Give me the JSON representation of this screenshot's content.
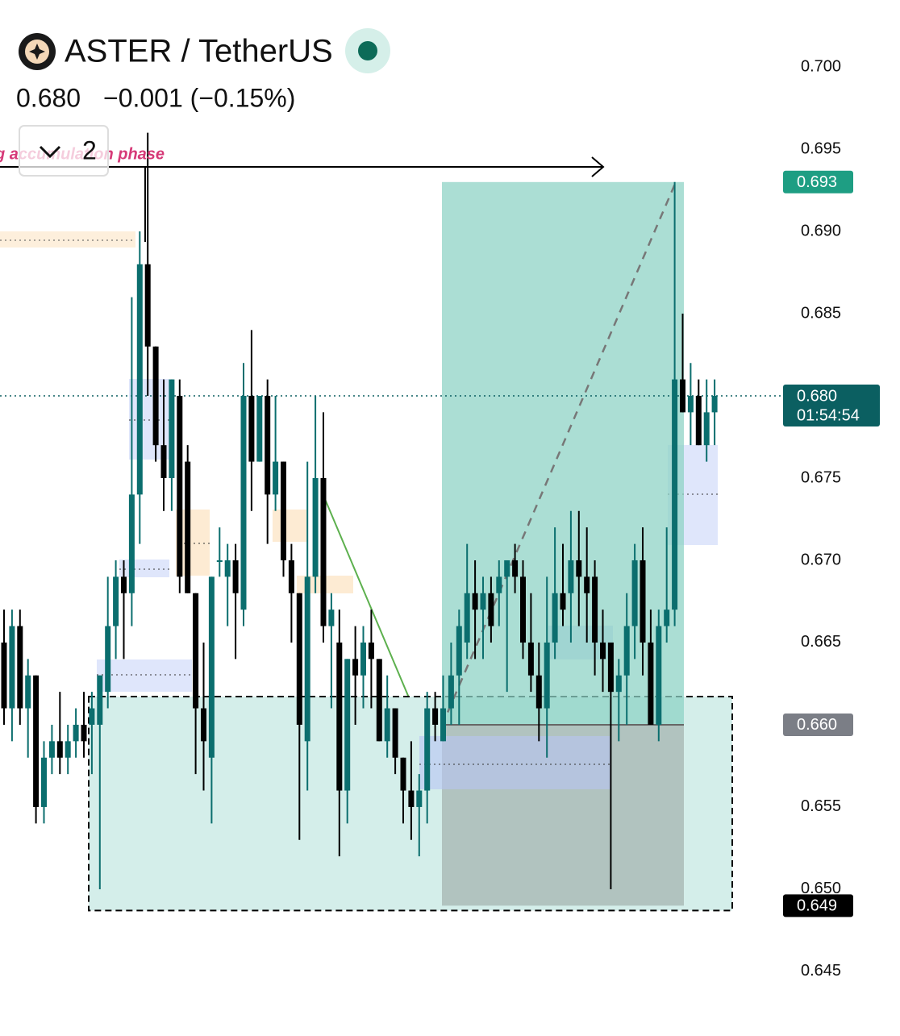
{
  "chart_data": {
    "type": "candlestick",
    "title": "ASTER / TetherUS",
    "price": "0.680",
    "change": "−0.001 (−0.15%)",
    "interval_count": "2",
    "annotation": "g accumulation phase",
    "up_color": "#0b6e6e",
    "down_color": "#000000",
    "ylim": [
      0.64132,
      0.70407
    ],
    "yticks": [
      {
        "value": 0.7,
        "label": "0.700"
      },
      {
        "value": 0.695,
        "label": "0.695"
      },
      {
        "value": 0.69,
        "label": "0.690"
      },
      {
        "value": 0.685,
        "label": "0.685"
      },
      {
        "value": 0.68,
        "label": "0.680"
      },
      {
        "value": 0.675,
        "label": "0.675"
      },
      {
        "value": 0.67,
        "label": "0.670"
      },
      {
        "value": 0.665,
        "label": "0.665"
      },
      {
        "value": 0.66,
        "label": "0.660"
      },
      {
        "value": 0.655,
        "label": "0.655"
      },
      {
        "value": 0.65,
        "label": "0.650"
      },
      {
        "value": 0.645,
        "label": "0.645"
      }
    ],
    "price_labels": [
      {
        "value": 0.693,
        "label": "0.693",
        "color": "#1e9e83"
      },
      {
        "value": 0.68,
        "label": "0.680",
        "sublabel": "01:54:54",
        "color": "#0b5f61"
      },
      {
        "value": 0.66,
        "label": "0.660",
        "color": "#7b7e86"
      },
      {
        "value": 0.649,
        "label": "0.649",
        "color": "#000000"
      }
    ],
    "ohlc": [
      [
        0.665,
        0.667,
        0.66,
        0.661
      ],
      [
        0.661,
        0.667,
        0.659,
        0.666
      ],
      [
        0.666,
        0.667,
        0.66,
        0.661
      ],
      [
        0.661,
        0.664,
        0.658,
        0.663
      ],
      [
        0.663,
        0.663,
        0.654,
        0.655
      ],
      [
        0.655,
        0.659,
        0.654,
        0.658
      ],
      [
        0.658,
        0.66,
        0.657,
        0.659
      ],
      [
        0.659,
        0.662,
        0.657,
        0.658
      ],
      [
        0.658,
        0.66,
        0.657,
        0.659
      ],
      [
        0.659,
        0.661,
        0.658,
        0.66
      ],
      [
        0.66,
        0.662,
        0.658,
        0.659
      ],
      [
        0.66,
        0.662,
        0.657,
        0.661
      ],
      [
        0.66,
        0.663,
        0.65,
        0.663
      ],
      [
        0.662,
        0.669,
        0.661,
        0.666
      ],
      [
        0.666,
        0.67,
        0.664,
        0.669
      ],
      [
        0.669,
        0.67,
        0.664,
        0.668
      ],
      [
        0.668,
        0.686,
        0.666,
        0.674
      ],
      [
        0.674,
        0.69,
        0.671,
        0.688
      ],
      [
        0.688,
        0.696,
        0.68,
        0.683
      ],
      [
        0.683,
        0.683,
        0.676,
        0.677
      ],
      [
        0.677,
        0.681,
        0.673,
        0.675
      ],
      [
        0.675,
        0.681,
        0.673,
        0.681
      ],
      [
        0.68,
        0.681,
        0.668,
        0.669
      ],
      [
        0.676,
        0.677,
        0.668,
        0.668
      ],
      [
        0.668,
        0.668,
        0.657,
        0.661
      ],
      [
        0.661,
        0.665,
        0.656,
        0.659
      ],
      [
        0.658,
        0.669,
        0.654,
        0.669
      ],
      [
        0.67,
        0.672,
        0.669,
        0.67
      ],
      [
        0.669,
        0.671,
        0.666,
        0.67
      ],
      [
        0.67,
        0.671,
        0.664,
        0.668
      ],
      [
        0.667,
        0.682,
        0.666,
        0.68
      ],
      [
        0.68,
        0.684,
        0.673,
        0.676
      ],
      [
        0.676,
        0.68,
        0.676,
        0.68
      ],
      [
        0.68,
        0.681,
        0.671,
        0.674
      ],
      [
        0.674,
        0.68,
        0.673,
        0.676
      ],
      [
        0.676,
        0.676,
        0.669,
        0.67
      ],
      [
        0.67,
        0.671,
        0.665,
        0.668
      ],
      [
        0.668,
        0.668,
        0.653,
        0.66
      ],
      [
        0.659,
        0.676,
        0.656,
        0.669
      ],
      [
        0.669,
        0.68,
        0.668,
        0.675
      ],
      [
        0.675,
        0.679,
        0.665,
        0.666
      ],
      [
        0.666,
        0.668,
        0.661,
        0.667
      ],
      [
        0.665,
        0.667,
        0.652,
        0.656
      ],
      [
        0.656,
        0.664,
        0.654,
        0.664
      ],
      [
        0.664,
        0.666,
        0.66,
        0.663
      ],
      [
        0.663,
        0.666,
        0.661,
        0.665
      ],
      [
        0.665,
        0.667,
        0.661,
        0.664
      ],
      [
        0.664,
        0.664,
        0.659,
        0.659
      ],
      [
        0.659,
        0.663,
        0.658,
        0.661
      ],
      [
        0.661,
        0.661,
        0.657,
        0.658
      ],
      [
        0.658,
        0.658,
        0.654,
        0.656
      ],
      [
        0.656,
        0.659,
        0.653,
        0.655
      ],
      [
        0.655,
        0.657,
        0.652,
        0.656
      ],
      [
        0.656,
        0.662,
        0.654,
        0.661
      ],
      [
        0.661,
        0.662,
        0.659,
        0.66
      ],
      [
        0.659,
        0.663,
        0.659,
        0.661
      ],
      [
        0.661,
        0.665,
        0.66,
        0.663
      ],
      [
        0.663,
        0.667,
        0.66,
        0.666
      ],
      [
        0.665,
        0.671,
        0.664,
        0.668
      ],
      [
        0.668,
        0.67,
        0.664,
        0.667
      ],
      [
        0.667,
        0.669,
        0.664,
        0.668
      ],
      [
        0.668,
        0.669,
        0.665,
        0.666
      ],
      [
        0.668,
        0.67,
        0.666,
        0.669
      ],
      [
        0.669,
        0.67,
        0.662,
        0.67
      ],
      [
        0.67,
        0.671,
        0.668,
        0.669
      ],
      [
        0.669,
        0.67,
        0.664,
        0.665
      ],
      [
        0.665,
        0.668,
        0.662,
        0.663
      ],
      [
        0.663,
        0.665,
        0.659,
        0.661
      ],
      [
        0.661,
        0.669,
        0.658,
        0.665
      ],
      [
        0.665,
        0.672,
        0.664,
        0.668
      ],
      [
        0.668,
        0.671,
        0.666,
        0.667
      ],
      [
        0.668,
        0.673,
        0.665,
        0.67
      ],
      [
        0.67,
        0.673,
        0.666,
        0.669
      ],
      [
        0.669,
        0.672,
        0.665,
        0.668
      ],
      [
        0.669,
        0.67,
        0.663,
        0.665
      ],
      [
        0.665,
        0.667,
        0.662,
        0.664
      ],
      [
        0.665,
        0.665,
        0.65,
        0.662
      ],
      [
        0.662,
        0.664,
        0.659,
        0.663
      ],
      [
        0.663,
        0.668,
        0.66,
        0.666
      ],
      [
        0.666,
        0.671,
        0.664,
        0.67
      ],
      [
        0.67,
        0.672,
        0.663,
        0.665
      ],
      [
        0.665,
        0.667,
        0.66,
        0.66
      ],
      [
        0.66,
        0.667,
        0.659,
        0.666
      ],
      [
        0.666,
        0.672,
        0.665,
        0.667
      ],
      [
        0.667,
        0.693,
        0.666,
        0.681
      ],
      [
        0.681,
        0.685,
        0.679,
        0.679
      ],
      [
        0.679,
        0.682,
        0.677,
        0.68
      ],
      [
        0.68,
        0.681,
        0.677,
        0.677
      ],
      [
        0.677,
        0.681,
        0.676,
        0.679
      ],
      [
        0.679,
        0.681,
        0.677,
        0.68
      ]
    ]
  }
}
